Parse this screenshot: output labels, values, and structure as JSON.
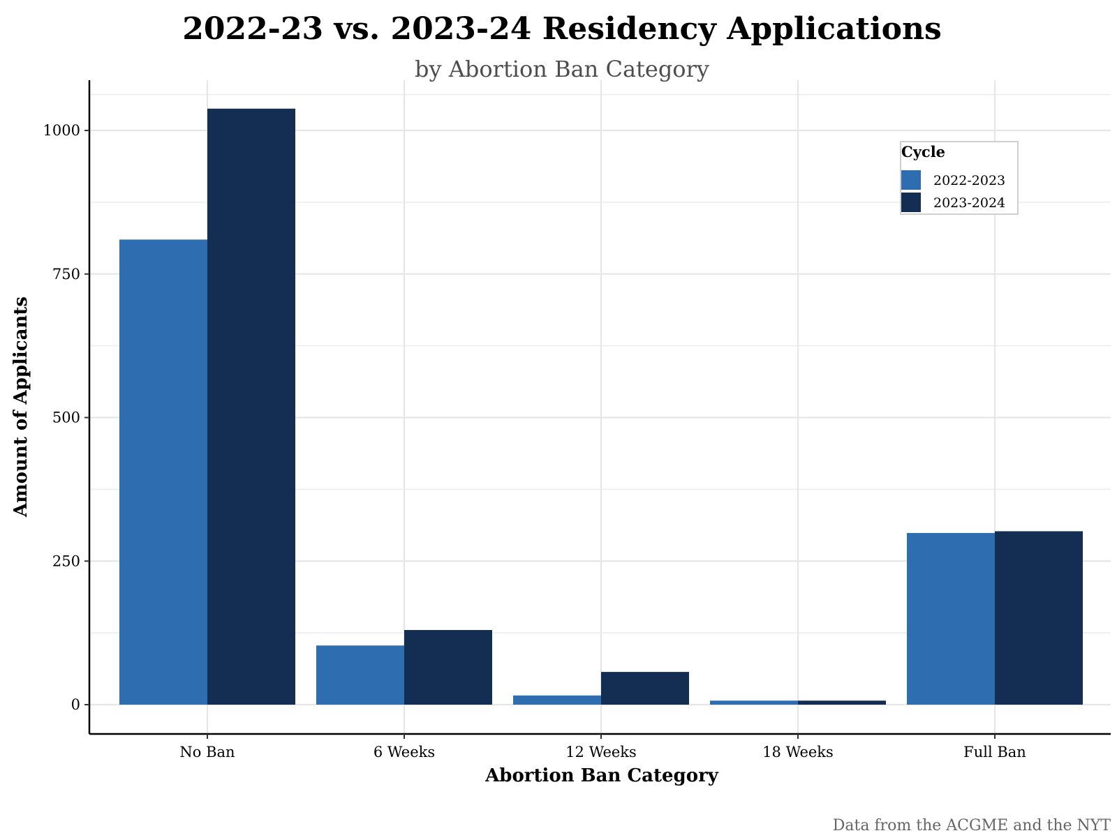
{
  "chart_data": {
    "type": "bar",
    "title": "2022-23 vs. 2023-24 Residency Applications",
    "subtitle": "by Abortion Ban Category",
    "xlabel": "Abortion Ban Category",
    "ylabel": "Amount of Applicants",
    "caption": "Data from the ACGME and the NYT",
    "categories": [
      "No Ban",
      "6 Weeks",
      "12 Weeks",
      "18 Weeks",
      "Full Ban"
    ],
    "series": [
      {
        "name": "2022-2023",
        "color": "#2f6db1",
        "values": [
          810,
          103,
          16,
          7,
          299
        ]
      },
      {
        "name": "2023-2024",
        "color": "#132e52",
        "values": [
          1038,
          130,
          57,
          7,
          302
        ]
      }
    ],
    "ylim": [
      -50,
      1090
    ],
    "yticks": [
      0,
      250,
      500,
      750,
      1000
    ],
    "grid": true,
    "legend": {
      "title": "Cycle",
      "position": "top-right"
    }
  }
}
